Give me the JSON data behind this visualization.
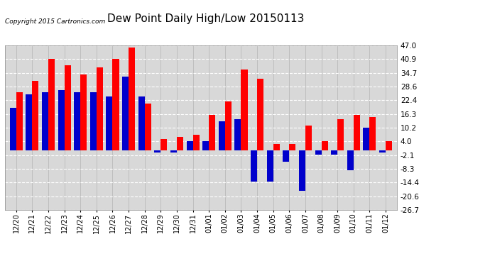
{
  "title": "Dew Point Daily High/Low 20150113",
  "copyright": "Copyright 2015 Cartronics.com",
  "dates": [
    "12/20",
    "12/21",
    "12/22",
    "12/23",
    "12/24",
    "12/25",
    "12/26",
    "12/27",
    "12/28",
    "12/29",
    "12/30",
    "12/31",
    "01/01",
    "01/02",
    "01/03",
    "01/04",
    "01/05",
    "01/06",
    "01/07",
    "01/08",
    "01/09",
    "01/10",
    "01/11",
    "01/12"
  ],
  "high": [
    26,
    31,
    41,
    38,
    34,
    37,
    41,
    46,
    21,
    5,
    6,
    7,
    16,
    22,
    36,
    32,
    3,
    3,
    11,
    4,
    14,
    16,
    15,
    4
  ],
  "low": [
    19,
    25,
    26,
    27,
    26,
    26,
    24,
    33,
    24,
    -1,
    -1,
    4,
    4,
    13,
    14,
    -14,
    -14,
    -5,
    -18,
    -2,
    -2,
    -9,
    10,
    -1
  ],
  "ylim": [
    -26.7,
    47.0
  ],
  "yticks": [
    -26.7,
    -20.6,
    -14.4,
    -8.3,
    -2.1,
    4.0,
    10.2,
    16.3,
    22.4,
    28.6,
    34.7,
    40.9,
    47.0
  ],
  "high_color": "#FF0000",
  "low_color": "#0000CC",
  "bg_color": "#FFFFFF",
  "plot_bg": "#D8D8D8",
  "grid_color": "#FFFFFF",
  "title_fontsize": 11,
  "bar_width": 0.4,
  "figwidth": 6.9,
  "figheight": 3.75,
  "dpi": 100
}
